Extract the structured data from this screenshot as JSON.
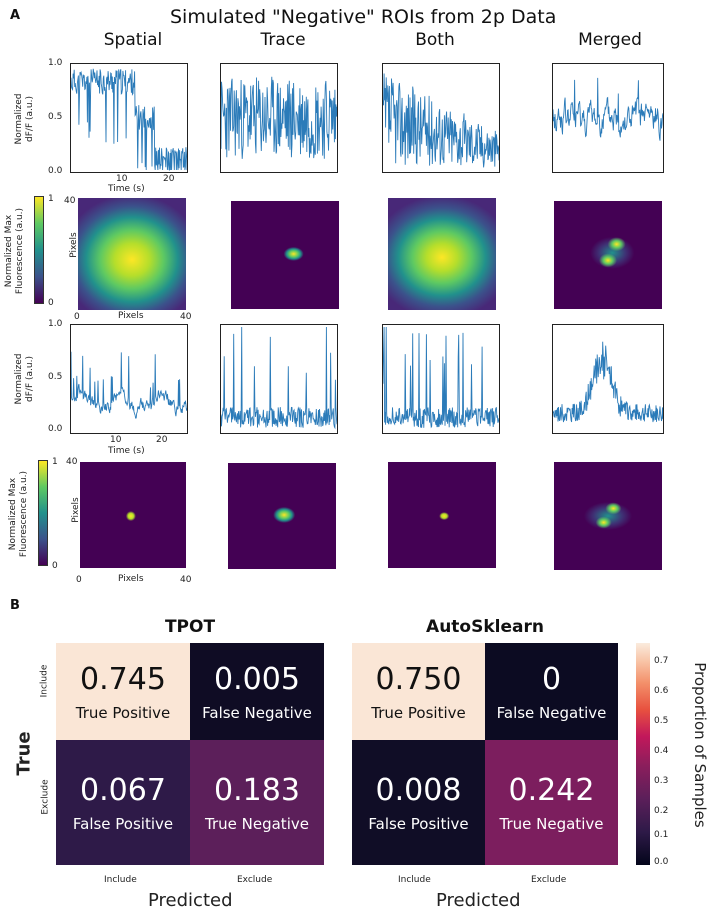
{
  "panel_a": {
    "letter": "A",
    "title": "Simulated \"Negative\" ROIs  from 2p Data",
    "columns": [
      "Spatial",
      "Trace",
      "Both",
      "Merged"
    ],
    "trace_ylabel_1": "Normalized",
    "trace_ylabel_2": "dF/F  (a.u.)",
    "img_ylabel_1": "Normalized Max",
    "img_ylabel_2": "Fluorescence (a.u.)",
    "row1": {
      "y_ticks": [
        "1.0",
        "0.5",
        "0.0"
      ],
      "x_ticks": [
        "10",
        "20"
      ],
      "xlabel": "Time (s)"
    },
    "row3": {
      "y_ticks": [
        "1.0",
        "0.5",
        "0.0"
      ],
      "x_ticks": [
        "10",
        "20"
      ],
      "xlabel": "Time (s)"
    },
    "img_axes": {
      "y_top": "40",
      "x_left": "0",
      "x_right": "40",
      "xlabel": "Pixels",
      "ylabel": "Pixels"
    },
    "colorbar": {
      "top": "1",
      "bottom": "0"
    },
    "colors": {
      "trace": "#2b7bb9",
      "viridis_dark": "#440154",
      "viridis_yellow": "#fde725"
    }
  },
  "panel_b": {
    "letter": "B",
    "matrices": [
      {
        "title": "TPOT",
        "cells": [
          {
            "value": "0.745",
            "label": "True Positive",
            "color": "#fae6d6",
            "text": "#111111"
          },
          {
            "value": "0.005",
            "label": "False Negative",
            "color": "#0f0c24",
            "text": "#ffffff"
          },
          {
            "value": "0.067",
            "label": "False Positive",
            "color": "#2e1a48",
            "text": "#ffffff"
          },
          {
            "value": "0.183",
            "label": "True Negative",
            "color": "#5c1f5a",
            "text": "#ffffff"
          }
        ]
      },
      {
        "title": "AutoSklearn",
        "cells": [
          {
            "value": "0.750",
            "label": "True Positive",
            "color": "#fae6d6",
            "text": "#111111"
          },
          {
            "value": "0",
            "label": "False Negative",
            "color": "#0c0b22",
            "text": "#ffffff"
          },
          {
            "value": "0.008",
            "label": "False Positive",
            "color": "#100d26",
            "text": "#ffffff"
          },
          {
            "value": "0.242",
            "label": "True Negative",
            "color": "#7c1e5e",
            "text": "#ffffff"
          }
        ]
      }
    ],
    "row_labels": [
      "Include",
      "Exclude"
    ],
    "col_labels": [
      "Include",
      "Exclude"
    ],
    "ylabel": "True",
    "xlabel": "Predicted",
    "colorbar_label": "Proportion of Samples",
    "colorbar_ticks": [
      "0.7",
      "0.6",
      "0.5",
      "0.4",
      "0.3",
      "0.2",
      "0.1",
      "0.0"
    ]
  }
}
